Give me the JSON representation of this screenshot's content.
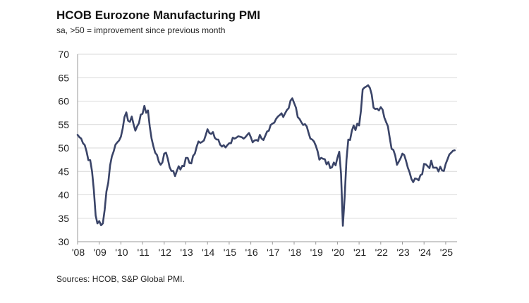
{
  "chart_data": {
    "type": "line",
    "title": "HCOB Eurozone Manufacturing PMI",
    "subtitle": "sa, >50 = improvement since previous month",
    "source": "Sources: HCOB, S&P Global PMI.",
    "xlabel": "",
    "ylabel": "",
    "ylim": [
      30,
      70
    ],
    "yticks": [
      30,
      35,
      40,
      45,
      50,
      55,
      60,
      65,
      70
    ],
    "xticks": [
      "'08",
      "'09",
      "'10",
      "'11",
      "'12",
      "'13",
      "'14",
      "'15",
      "'16",
      "'17",
      "'18",
      "'19",
      "'20",
      "'21",
      "'22",
      "'23",
      "'24",
      "'25"
    ],
    "grid": "horizontal",
    "legend": "none",
    "x_start": "2008-01",
    "x_frequency": "monthly",
    "series": [
      {
        "name": "HCOB Eurozone Manufacturing PMI",
        "color": "#3a4468",
        "values": [
          52.8,
          52.3,
          52.0,
          51.0,
          50.6,
          49.2,
          47.4,
          47.4,
          45.0,
          41.1,
          35.6,
          33.9,
          34.4,
          33.5,
          33.9,
          36.8,
          40.7,
          42.6,
          46.3,
          48.2,
          49.3,
          50.7,
          51.2,
          51.6,
          52.4,
          54.2,
          56.6,
          57.6,
          55.8,
          55.6,
          56.7,
          55.1,
          53.7,
          54.6,
          55.3,
          57.1,
          57.3,
          59.0,
          57.5,
          58.0,
          54.6,
          52.0,
          50.4,
          49.0,
          48.5,
          47.1,
          46.4,
          46.9,
          48.8,
          49.0,
          47.7,
          45.9,
          45.1,
          45.1,
          44.0,
          45.1,
          46.1,
          45.4,
          46.2,
          46.1,
          47.9,
          47.9,
          46.8,
          46.7,
          48.3,
          48.8,
          50.3,
          51.4,
          51.1,
          51.3,
          51.6,
          52.7,
          54.0,
          53.2,
          53.0,
          53.4,
          52.2,
          51.8,
          51.8,
          50.7,
          50.3,
          50.6,
          50.1,
          50.6,
          51.0,
          51.0,
          52.2,
          52.0,
          52.2,
          52.5,
          52.4,
          52.3,
          52.0,
          52.3,
          52.8,
          53.2,
          52.3,
          51.2,
          51.6,
          51.7,
          51.5,
          52.8,
          52.0,
          51.7,
          52.6,
          53.5,
          53.7,
          54.9,
          55.2,
          55.4,
          56.2,
          56.7,
          57.0,
          57.4,
          56.6,
          57.4,
          58.1,
          58.5,
          60.1,
          60.6,
          59.6,
          58.6,
          56.6,
          56.2,
          55.5,
          54.9,
          55.1,
          54.6,
          53.2,
          52.0,
          51.8,
          51.4,
          50.5,
          49.3,
          47.5,
          47.9,
          47.7,
          47.6,
          46.5,
          47.0,
          45.7,
          45.9,
          46.9,
          46.3,
          47.9,
          49.2,
          44.5,
          33.4,
          39.4,
          47.4,
          51.8,
          51.7,
          53.7,
          54.8,
          53.8,
          55.2,
          54.8,
          57.9,
          62.5,
          62.9,
          63.1,
          63.4,
          62.8,
          61.4,
          58.6,
          58.3,
          58.4,
          58.0,
          58.7,
          58.2,
          56.5,
          55.5,
          54.6,
          52.1,
          49.8,
          49.6,
          48.4,
          46.4,
          47.1,
          47.8,
          48.8,
          48.5,
          47.3,
          45.8,
          44.8,
          43.4,
          42.7,
          43.5,
          43.4,
          43.1,
          44.2,
          44.4,
          46.6,
          46.5,
          46.1,
          45.7,
          47.3,
          45.8,
          45.8,
          45.8,
          45.0,
          46.0,
          45.2,
          45.1,
          46.6,
          47.6,
          48.6,
          49.0,
          49.4,
          49.5
        ]
      }
    ]
  }
}
